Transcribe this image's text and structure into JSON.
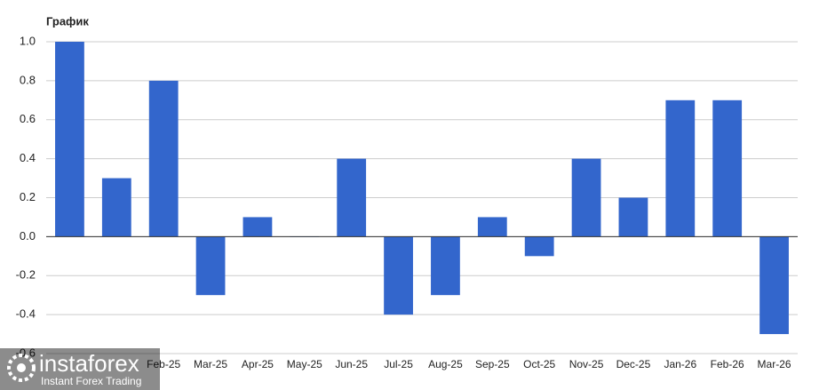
{
  "chart_data": {
    "type": "bar",
    "title": "График",
    "categories": [
      null,
      null,
      "Feb-25",
      "Mar-25",
      "Apr-25",
      "May-25",
      "Jun-25",
      "Jul-25",
      "Aug-25",
      "Sep-25",
      "Oct-25",
      "Nov-25",
      "Dec-25",
      "Jan-26",
      "Feb-26",
      "Mar-26"
    ],
    "values": [
      1.0,
      0.3,
      0.8,
      -0.3,
      0.1,
      0,
      0.4,
      -0.4,
      -0.3,
      0.1,
      -0.1,
      0.4,
      0.2,
      0.7,
      0.7,
      -0.5
    ],
    "color": "#3366cc",
    "ylim": [
      -0.6,
      1.0
    ],
    "yticks": [
      {
        "value": -0.6,
        "label": "-0.6"
      },
      {
        "value": -0.4,
        "label": "-0.4"
      },
      {
        "value": -0.2,
        "label": "-0.2"
      },
      {
        "value": 0,
        "label": "0.0"
      },
      {
        "value": 0.2,
        "label": "0.2"
      },
      {
        "value": 0.4,
        "label": "0.4"
      },
      {
        "value": 0.6,
        "label": "0.6"
      },
      {
        "value": 0.8,
        "label": "0.8"
      },
      {
        "value": 1.0,
        "label": "1.0"
      }
    ],
    "grid": true
  },
  "watermark": {
    "brand": "instaforex",
    "tagline": "Instant Forex Trading"
  }
}
